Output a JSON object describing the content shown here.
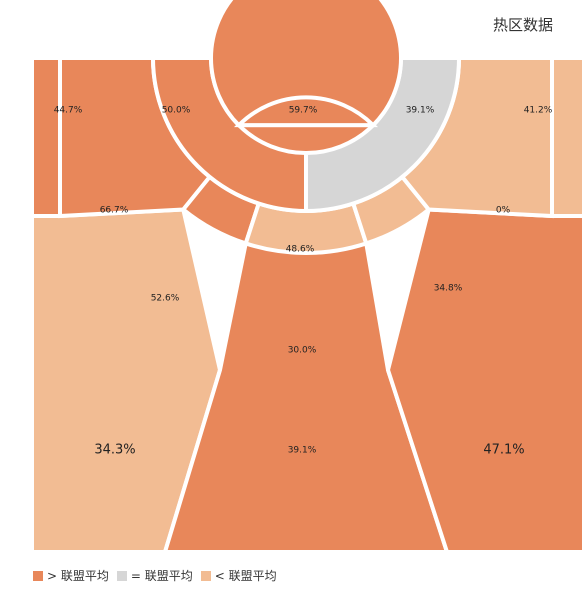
{
  "header": {
    "title": "热区数据"
  },
  "colors": {
    "above": "#e8875a",
    "equal": "#d6d6d6",
    "below": "#f2bc93",
    "border": "#ffffff"
  },
  "legend": [
    {
      "key": "above",
      "label": "> 联盟平均"
    },
    {
      "key": "equal",
      "label": "= 联盟平均"
    },
    {
      "key": "below",
      "label": "< 联盟平均"
    }
  ],
  "chart_data": {
    "type": "heatmap",
    "title": "热区数据",
    "zones": [
      {
        "id": "corner-left",
        "value": "44.7%",
        "status": "above"
      },
      {
        "id": "wing-left-upper",
        "value": "50.0%",
        "status": "above"
      },
      {
        "id": "restricted-area",
        "value": "59.7%",
        "status": "above"
      },
      {
        "id": "wing-right-upper",
        "value": "39.1%",
        "status": "equal"
      },
      {
        "id": "corner-right",
        "value": "41.2%",
        "status": "below"
      },
      {
        "id": "baseline-mid-left",
        "value": "66.7%",
        "status": "above"
      },
      {
        "id": "paint-front",
        "value": "48.6%",
        "status": "above"
      },
      {
        "id": "baseline-mid-right",
        "value": "0%",
        "status": "below"
      },
      {
        "id": "elbow-left",
        "value": "52.6%",
        "status": "above"
      },
      {
        "id": "top-key-mid",
        "value": "30.0%",
        "status": "below"
      },
      {
        "id": "elbow-right",
        "value": "34.8%",
        "status": "below"
      },
      {
        "id": "three-left-wing",
        "value": "34.3%",
        "status": "below"
      },
      {
        "id": "three-top",
        "value": "39.1%",
        "status": "above"
      },
      {
        "id": "three-right-wing",
        "value": "47.1%",
        "status": "above"
      }
    ]
  }
}
